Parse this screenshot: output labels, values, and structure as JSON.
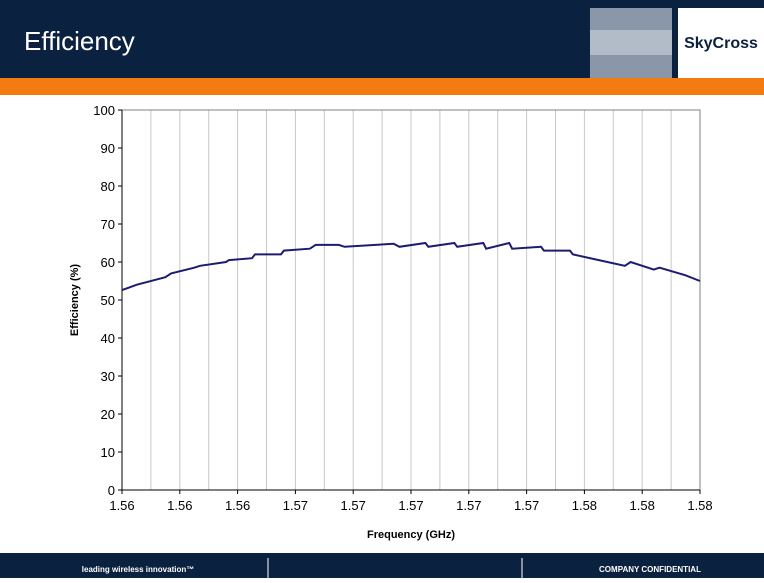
{
  "header": {
    "title": "Efficiency",
    "logo": "SkyCross"
  },
  "footer": {
    "left": "leading wireless innovation™",
    "right": "COMPANY CONFIDENTIAL"
  },
  "chart_data": {
    "type": "line",
    "xlabel": "Frequency (GHz)",
    "ylabel": "Efficiency (%)",
    "x": [
      1.56,
      1.5605,
      1.5615,
      1.5617,
      1.5625,
      1.5627,
      1.5636,
      1.5637,
      1.5645,
      1.5646,
      1.5655,
      1.5656,
      1.5665,
      1.5667,
      1.5675,
      1.5677,
      1.5694,
      1.5696,
      1.5705,
      1.5706,
      1.5715,
      1.5716,
      1.5725,
      1.5726,
      1.5734,
      1.5735,
      1.5745,
      1.5746,
      1.5755,
      1.5756,
      1.5765,
      1.5774,
      1.5776,
      1.5784,
      1.5786,
      1.5795,
      1.58
    ],
    "series": [
      {
        "color": "#1c1c70",
        "values": [
          52.6,
          54,
          56,
          57,
          58.5,
          59,
          60,
          60.5,
          61,
          62,
          62,
          63,
          63.5,
          64.5,
          64.5,
          64,
          64.8,
          64,
          65,
          64,
          65,
          64,
          65,
          63.5,
          65,
          63.5,
          64,
          63,
          63,
          62,
          60.5,
          59,
          60,
          58,
          58.5,
          56.5,
          55
        ]
      }
    ],
    "xlim": [
      1.56,
      1.58
    ],
    "xticks": [
      {
        "value": 1.56,
        "label": "1.56"
      },
      {
        "value": 1.562,
        "label": "1.56"
      },
      {
        "value": 1.564,
        "label": "1.56"
      },
      {
        "value": 1.566,
        "label": "1.57"
      },
      {
        "value": 1.568,
        "label": "1.57"
      },
      {
        "value": 1.57,
        "label": "1.57"
      },
      {
        "value": 1.572,
        "label": "1.57"
      },
      {
        "value": 1.574,
        "label": "1.57"
      },
      {
        "value": 1.576,
        "label": "1.58"
      },
      {
        "value": 1.578,
        "label": "1.58"
      },
      {
        "value": 1.58,
        "label": "1.58"
      }
    ],
    "xminorticks": [
      1.561,
      1.563,
      1.565,
      1.567,
      1.569,
      1.571,
      1.573,
      1.575,
      1.577,
      1.579
    ],
    "ylim": [
      0,
      100
    ],
    "yticks": [
      0,
      10,
      20,
      30,
      40,
      50,
      60,
      70,
      80,
      90,
      100
    ],
    "grid": true
  }
}
